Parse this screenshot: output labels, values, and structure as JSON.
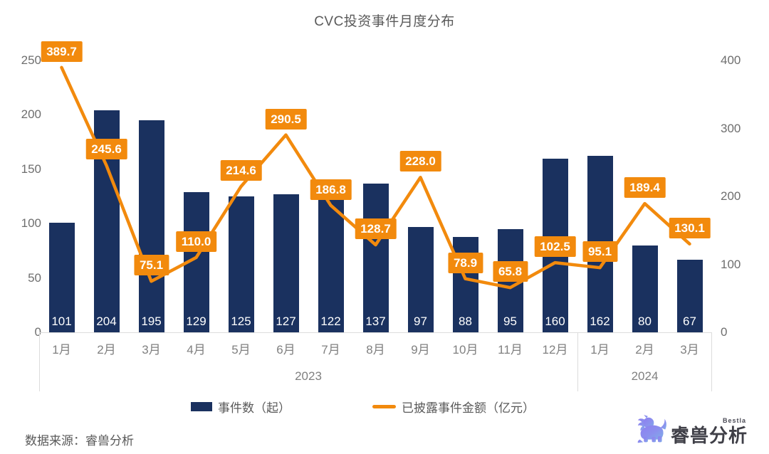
{
  "title": "CVC投资事件月度分布",
  "source_note": "数据来源：睿兽分析",
  "logo": {
    "name": "睿兽分析",
    "tagline": "Bestla",
    "icon": "beast-icon"
  },
  "legend": {
    "bar_label": "事件数（起）",
    "line_label": "已披露事件金额（亿元）"
  },
  "colors": {
    "bar": "#1a315f",
    "line": "#f28a0d",
    "point_label_bg": "#f28a0d",
    "point_label_text": "#ffffff",
    "axis_text": "#6e6e6e",
    "category_text": "#808080",
    "band_border": "#dcdcdc"
  },
  "chart_data": {
    "type": "bar",
    "subtype": "bar+line combo, dual y-axis",
    "title": "CVC投资事件月度分布",
    "categories": [
      "1月",
      "2月",
      "3月",
      "4月",
      "5月",
      "6月",
      "7月",
      "8月",
      "9月",
      "10月",
      "11月",
      "12月",
      "1月",
      "2月",
      "3月"
    ],
    "year_groups": [
      {
        "label": "2023",
        "months": 12
      },
      {
        "label": "2024",
        "months": 3
      }
    ],
    "series": [
      {
        "name": "事件数（起）",
        "type": "bar",
        "yaxis": "left",
        "values": [
          101,
          204,
          195,
          129,
          125,
          127,
          122,
          137,
          97,
          88,
          95,
          160,
          162,
          80,
          67
        ]
      },
      {
        "name": "已披露事件金额（亿元）",
        "type": "line",
        "yaxis": "right",
        "values": [
          389.7,
          245.6,
          75.1,
          110.0,
          214.6,
          290.5,
          186.8,
          128.7,
          228.0,
          78.9,
          65.8,
          102.5,
          95.1,
          189.4,
          130.1
        ],
        "labels": [
          "389.7",
          "245.6",
          "75.1",
          "110.0",
          "214.6",
          "290.5",
          "186.8",
          "128.7",
          "228.0",
          "78.9",
          "65.8",
          "102.5",
          "95.1",
          "189.4",
          "130.1"
        ]
      }
    ],
    "left_axis": {
      "min": 0,
      "max": 250,
      "ticks": [
        0,
        50,
        100,
        150,
        200,
        250
      ]
    },
    "right_axis": {
      "min": 0,
      "max": 400,
      "ticks": [
        0,
        100,
        200,
        300,
        400
      ]
    },
    "grid": false,
    "legend_position": "bottom"
  }
}
